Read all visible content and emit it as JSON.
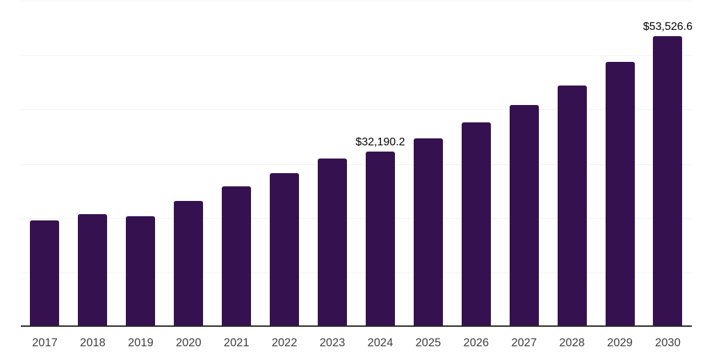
{
  "chart_data": {
    "type": "bar",
    "title": "",
    "xlabel": "",
    "ylabel": "",
    "categories": [
      "2017",
      "2018",
      "2019",
      "2020",
      "2021",
      "2022",
      "2023",
      "2024",
      "2025",
      "2026",
      "2027",
      "2028",
      "2029",
      "2030"
    ],
    "values": [
      19600,
      20700,
      20400,
      23200,
      25900,
      28300,
      31000,
      32190.2,
      34700,
      37600,
      40800,
      44400,
      48700,
      53526.6
    ],
    "value_labels": [
      "",
      "",
      "",
      "",
      "",
      "",
      "",
      "$32,190.2",
      "",
      "",
      "",
      "",
      "",
      "$53,526.6"
    ],
    "ylim": [
      0,
      60000
    ],
    "gridline_step": 10000,
    "grid": "horizontal-only",
    "legend_position": "none",
    "colors": {
      "bar": "#361150",
      "gridline": "#f4f4f4",
      "axis_line": "#2b2b2b",
      "tick_label": "#3f3f3f",
      "data_label": "#000000"
    }
  }
}
